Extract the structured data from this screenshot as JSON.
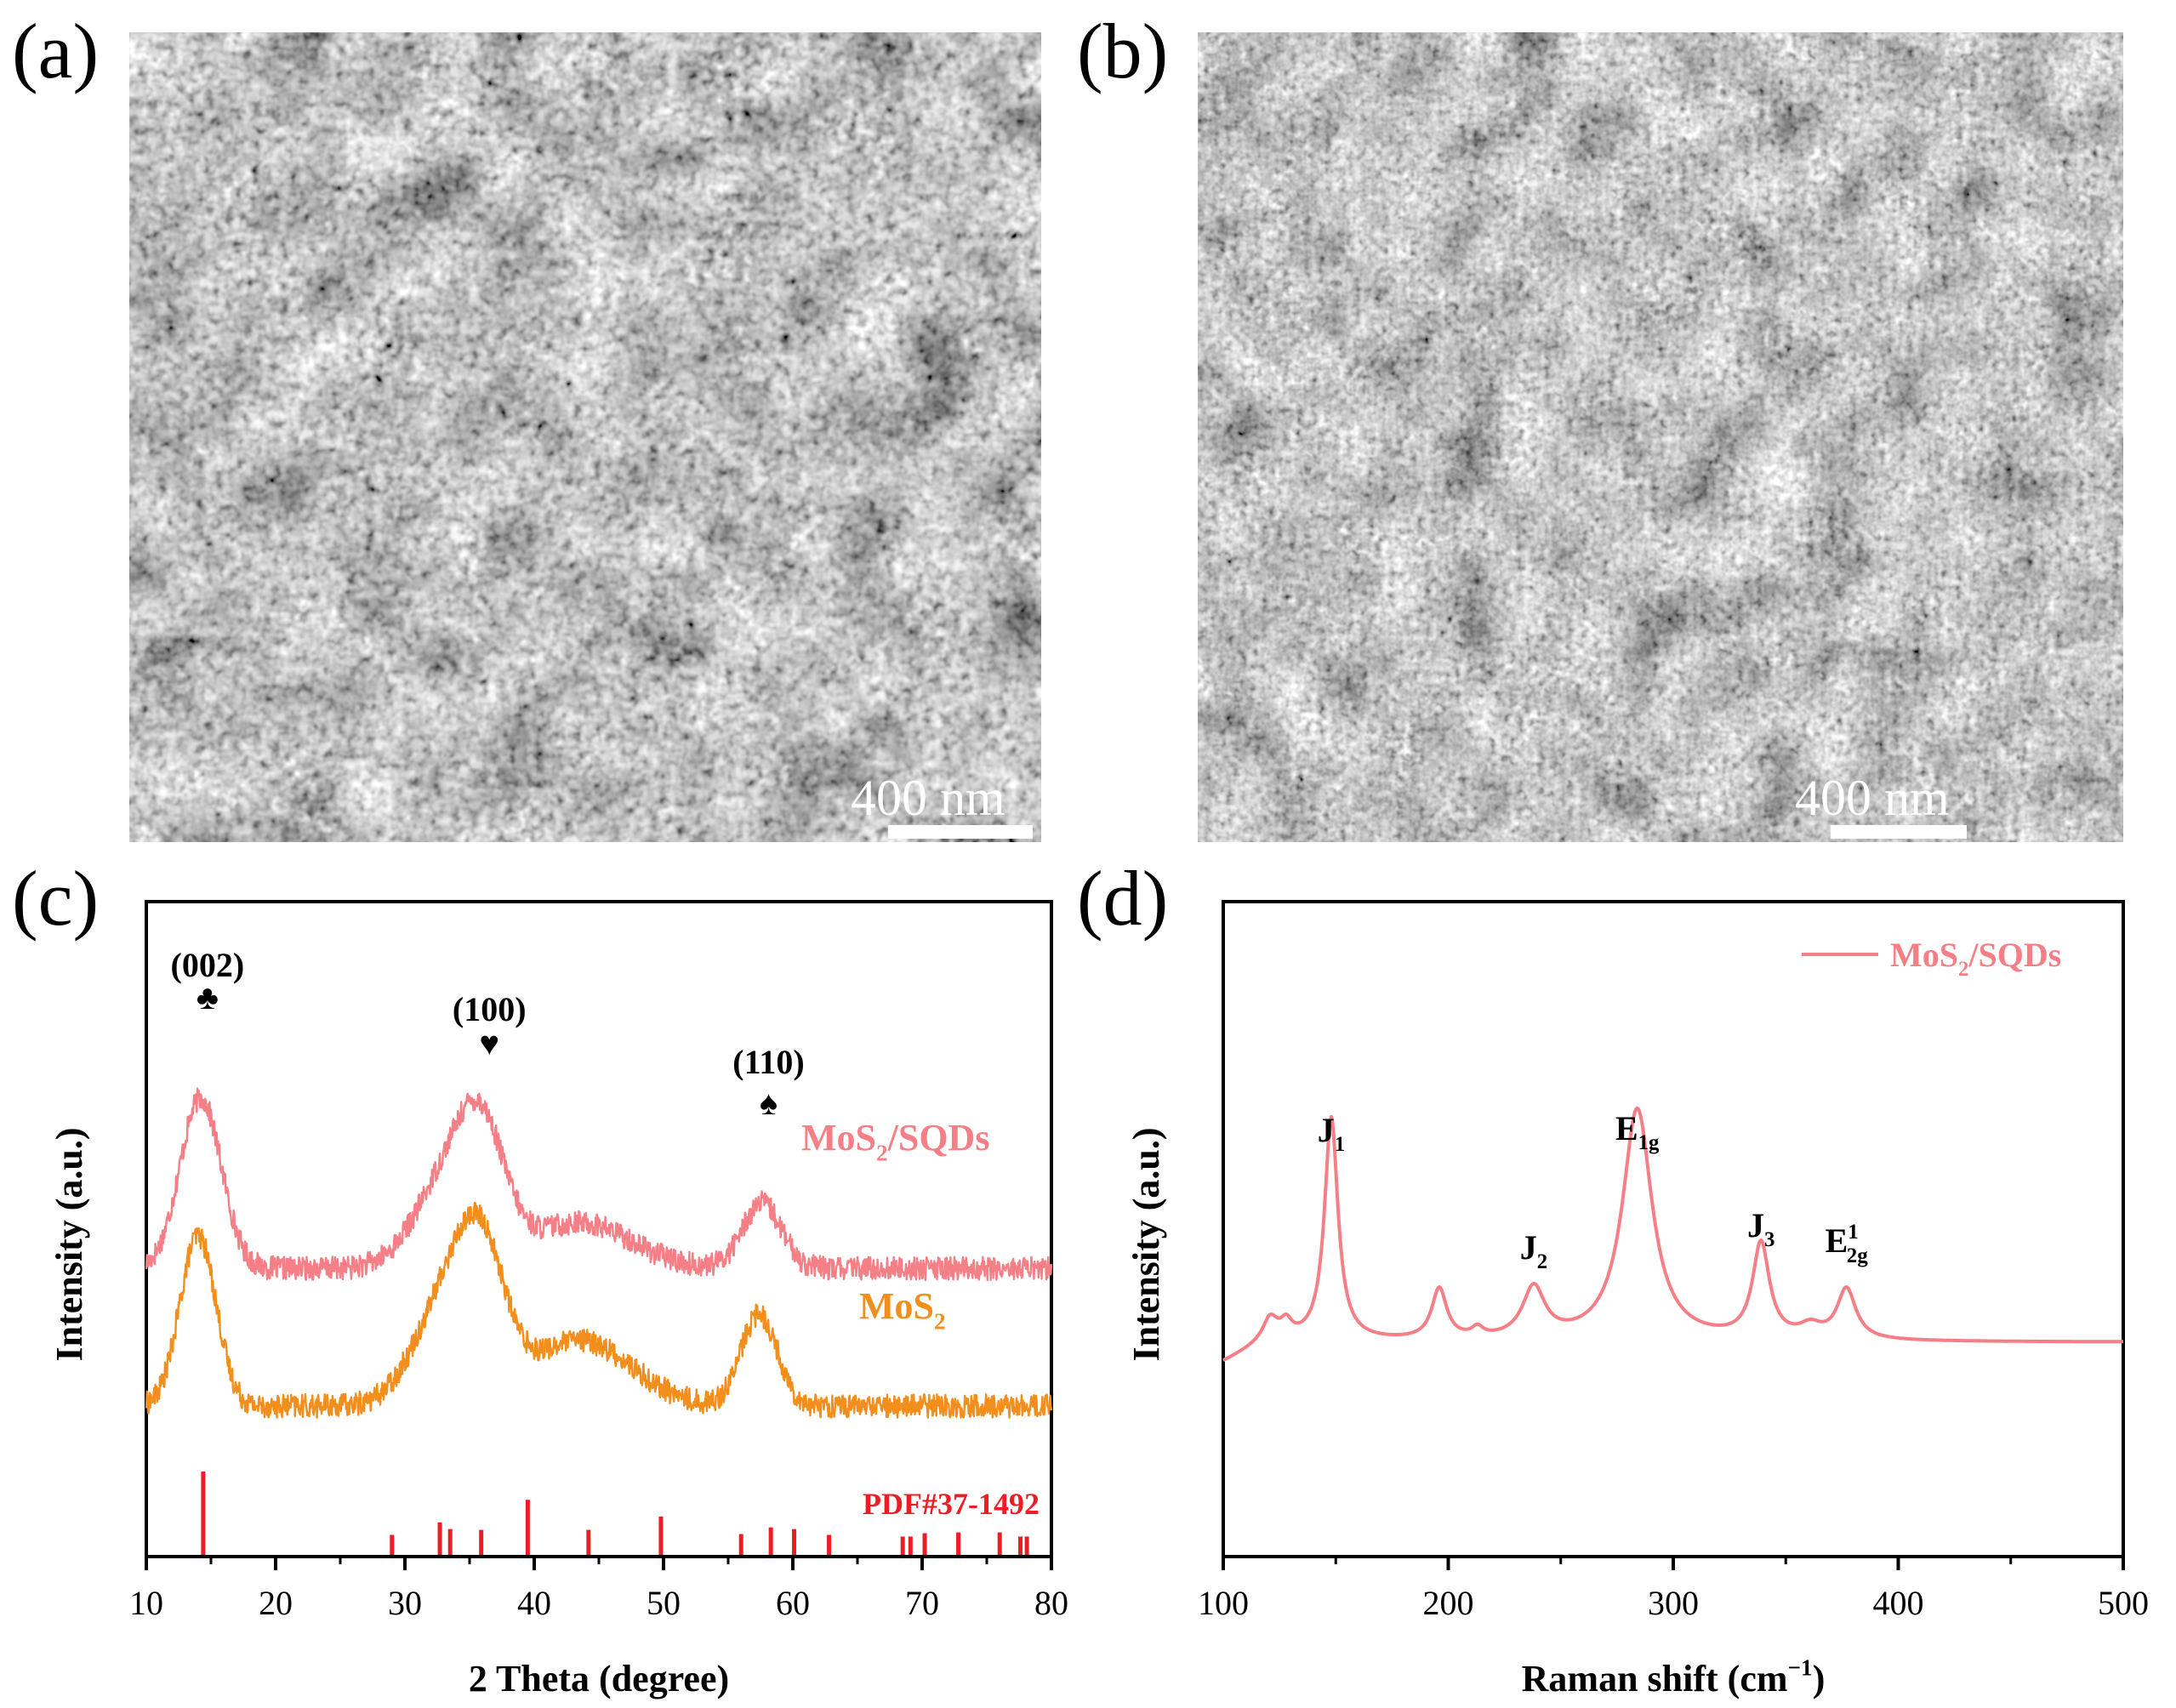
{
  "figure": {
    "panels": {
      "a": {
        "label": "(a)",
        "scale_bar": "400 nm"
      },
      "b": {
        "label": "(b)",
        "scale_bar": "400 nm"
      },
      "c": {
        "label": "(c)"
      },
      "d": {
        "label": "(d)"
      }
    }
  },
  "colors": {
    "mos2_sqds": "#f57f86",
    "mos2": "#f28e1c",
    "pdf": "#ee1c24",
    "axis": "#000000",
    "sem_bg": "#6f6f6f"
  },
  "chart_data": [
    {
      "type": "line",
      "panel": "c",
      "title": "",
      "xlabel": "2 Theta (degree)",
      "ylabel": "Intensity (a.u.)",
      "xlim": [
        10,
        80
      ],
      "xticks": [
        10,
        20,
        30,
        40,
        50,
        60,
        70,
        80
      ],
      "yticks_shown": false,
      "series": [
        {
          "name": "MoS2/SQDs",
          "label_main": "MoS",
          "label_sub": "2",
          "label_tail": "/SQDs",
          "color": "#f57f86",
          "offset": 4.4,
          "peaks": [
            [
              14.2,
              2.6,
              1.6
            ],
            [
              33.5,
              1.4,
              2.6
            ],
            [
              36.0,
              1.5,
              1.8
            ],
            [
              43.5,
              0.7,
              4.0
            ],
            [
              57.6,
              1.0,
              1.5
            ]
          ],
          "noise": 0.18
        },
        {
          "name": "MoS2",
          "label_main": "MoS",
          "label_sub": "2",
          "label_tail": "",
          "color": "#f28e1c",
          "offset": 2.3,
          "peaks": [
            [
              14.0,
              2.6,
              1.4
            ],
            [
              33.5,
              1.7,
              2.6
            ],
            [
              36.0,
              1.6,
              1.8
            ],
            [
              43.5,
              1.0,
              4.0
            ],
            [
              57.4,
              1.4,
              1.4
            ]
          ],
          "noise": 0.18
        }
      ],
      "reference": {
        "name": "PDF#37-1492",
        "color": "#ee1c24",
        "positions": [
          14.4,
          29.0,
          32.7,
          33.5,
          35.9,
          39.5,
          44.2,
          49.8,
          56.0,
          58.3,
          60.1,
          62.8,
          68.5,
          69.1,
          70.2,
          72.8,
          76.0,
          77.6,
          78.1
        ],
        "intensities": [
          100,
          24,
          39,
          31,
          30,
          66,
          30,
          46,
          25,
          33,
          31,
          24,
          22,
          22,
          26,
          27,
          27,
          22,
          22
        ]
      },
      "annotations": [
        {
          "text": "(002)",
          "symbol": "♣",
          "x": 14.2
        },
        {
          "text": "(100)",
          "symbol": "♥",
          "x": 36.0
        },
        {
          "text": "(110)",
          "symbol": "♠",
          "x": 57.6
        }
      ]
    },
    {
      "type": "line",
      "panel": "d",
      "title": "",
      "xlabel_main": "Raman shift (cm",
      "xlabel_sup": "−1",
      "xlabel_tail": ")",
      "ylabel": "Intensity (a.u.)",
      "xlim": [
        100,
        500
      ],
      "xticks": [
        100,
        200,
        300,
        400,
        500
      ],
      "yticks_shown": false,
      "legend": {
        "name_main": "MoS",
        "name_sub": "2",
        "name_tail": "/SQDs",
        "placement": "top-right"
      },
      "series": [
        {
          "name": "MoS2/SQDs",
          "color": "#f57f86",
          "baseline": 0.0,
          "peaks": [
            [
              121,
              0.07,
              4
            ],
            [
              128,
              0.05,
              3
            ],
            [
              148,
              0.75,
              3.6
            ],
            [
              196,
              0.17,
              4
            ],
            [
              213,
              0.03,
              3
            ],
            [
              238,
              0.17,
              6
            ],
            [
              284,
              0.78,
              8
            ],
            [
              339,
              0.32,
              4.5
            ],
            [
              361,
              0.04,
              6
            ],
            [
              377,
              0.17,
              5
            ]
          ]
        }
      ],
      "peak_labels": [
        {
          "main": "J",
          "sub": "1",
          "sup": "",
          "x": 148
        },
        {
          "main": "J",
          "sub": "2",
          "sup": "",
          "x": 238
        },
        {
          "main": "E",
          "sub": "1g",
          "sup": "",
          "x": 284
        },
        {
          "main": "J",
          "sub": "3",
          "sup": "",
          "x": 339
        },
        {
          "main": "E",
          "sub": "2g",
          "sup": "1",
          "x": 377
        }
      ]
    }
  ]
}
